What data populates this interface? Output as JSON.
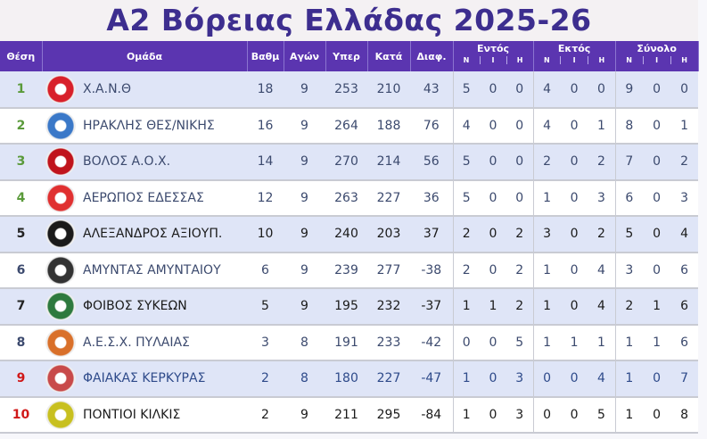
{
  "title": "A2 Βόρειας Ελλάδας 2025-26",
  "headers": {
    "pos": "Θέση",
    "team": "Ομάδα",
    "pts": "Βαθμ",
    "gp": "Αγών",
    "pf": "Υπερ",
    "pa": "Κατά",
    "diff": "Διαφ.",
    "home": "Εντός",
    "away": "Εκτός",
    "total": "Σύνολο",
    "n": "Ν",
    "i": "Ι",
    "h": "Η"
  },
  "colors": {
    "header": "#5b35b0",
    "title": "#3d2e8f",
    "promotion": "#5a9a3a",
    "relegation": "#d01818",
    "row_alt": "#dfe5f7"
  },
  "rows": [
    {
      "pos": "1",
      "team": "Χ.Α.Ν.Θ",
      "pts": "18",
      "gp": "9",
      "pf": "253",
      "pa": "210",
      "diff": "43",
      "hn": "5",
      "hi": "0",
      "hh": "0",
      "an": "4",
      "ai": "0",
      "ah": "0",
      "tn": "9",
      "ti": "0",
      "th": "0",
      "logo": "xanth-logo",
      "lc": "#d8202a"
    },
    {
      "pos": "2",
      "team": "ΗΡΑΚΛΗΣ ΘΕΣ/ΝΙΚΗΣ",
      "pts": "16",
      "gp": "9",
      "pf": "264",
      "pa": "188",
      "diff": "76",
      "hn": "4",
      "hi": "0",
      "hh": "0",
      "an": "4",
      "ai": "0",
      "ah": "1",
      "tn": "8",
      "ti": "0",
      "th": "1",
      "logo": "iraklis-logo",
      "lc": "#3a78c8"
    },
    {
      "pos": "3",
      "team": "ΒΟΛΟΣ Α.Ο.Χ.",
      "pts": "14",
      "gp": "9",
      "pf": "270",
      "pa": "214",
      "diff": "56",
      "hn": "5",
      "hi": "0",
      "hh": "0",
      "an": "2",
      "ai": "0",
      "ah": "2",
      "tn": "7",
      "ti": "0",
      "th": "2",
      "logo": "volos-logo",
      "lc": "#c0141c"
    },
    {
      "pos": "4",
      "team": "ΑΕΡΩΠΟΣ ΕΔΕΣΣΑΣ",
      "pts": "12",
      "gp": "9",
      "pf": "263",
      "pa": "227",
      "diff": "36",
      "hn": "5",
      "hi": "0",
      "hh": "0",
      "an": "1",
      "ai": "0",
      "ah": "3",
      "tn": "6",
      "ti": "0",
      "th": "3",
      "logo": "aeropos-logo",
      "lc": "#e03030"
    },
    {
      "pos": "5",
      "team": "ΑΛΕΞΑΝΔΡΟΣ ΑΞΙΟΥΠ.",
      "pts": "10",
      "gp": "9",
      "pf": "240",
      "pa": "203",
      "diff": "37",
      "hn": "2",
      "hi": "0",
      "hh": "2",
      "an": "3",
      "ai": "0",
      "ah": "2",
      "tn": "5",
      "ti": "0",
      "th": "4",
      "logo": "alexandros-logo",
      "lc": "#1a1a1a"
    },
    {
      "pos": "6",
      "team": "ΑΜΥΝΤΑΣ ΑΜΥΝΤΑΙΟΥ",
      "pts": "6",
      "gp": "9",
      "pf": "239",
      "pa": "277",
      "diff": "-38",
      "hn": "2",
      "hi": "0",
      "hh": "2",
      "an": "1",
      "ai": "0",
      "ah": "4",
      "tn": "3",
      "ti": "0",
      "th": "6",
      "logo": "amyntas-logo",
      "lc": "#333333"
    },
    {
      "pos": "7",
      "team": "ΦΟΙΒΟΣ ΣΥΚΕΩΝ",
      "pts": "5",
      "gp": "9",
      "pf": "195",
      "pa": "232",
      "diff": "-37",
      "hn": "1",
      "hi": "1",
      "hh": "2",
      "an": "1",
      "ai": "0",
      "ah": "4",
      "tn": "2",
      "ti": "1",
      "th": "6",
      "logo": "foivos-logo",
      "lc": "#2e7a3e"
    },
    {
      "pos": "8",
      "team": "Α.Ε.Σ.Χ. ΠΥΛΑΙΑΣ",
      "pts": "3",
      "gp": "8",
      "pf": "191",
      "pa": "233",
      "diff": "-42",
      "hn": "0",
      "hi": "0",
      "hh": "5",
      "an": "1",
      "ai": "1",
      "ah": "1",
      "tn": "1",
      "ti": "1",
      "th": "6",
      "logo": "pylaia-logo",
      "lc": "#d9702a"
    },
    {
      "pos": "9",
      "team": "ΦΑΙΑΚΑΣ ΚΕΡΚΥΡΑΣ",
      "pts": "2",
      "gp": "8",
      "pf": "180",
      "pa": "227",
      "diff": "-47",
      "hn": "1",
      "hi": "0",
      "hh": "3",
      "an": "0",
      "ai": "0",
      "ah": "4",
      "tn": "1",
      "ti": "0",
      "th": "7",
      "logo": "faiakas-logo",
      "lc": "#c84a4a"
    },
    {
      "pos": "10",
      "team": "ΠΟΝΤΙΟΙ ΚΙΛΚΙΣ",
      "pts": "2",
      "gp": "9",
      "pf": "211",
      "pa": "295",
      "diff": "-84",
      "hn": "1",
      "hi": "0",
      "hh": "3",
      "an": "0",
      "ai": "0",
      "ah": "5",
      "tn": "1",
      "ti": "0",
      "th": "8",
      "logo": "pontioi-logo",
      "lc": "#c8c020"
    }
  ]
}
